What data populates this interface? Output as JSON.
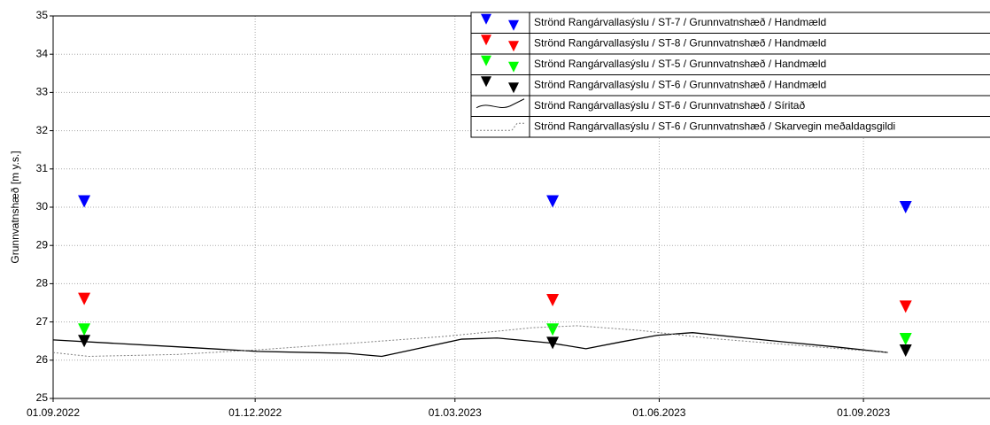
{
  "chart_data": {
    "type": "line",
    "y_label": "Grunnvatnshæð [m y.s.]",
    "ylim": [
      25,
      35
    ],
    "yticks": [
      25,
      26,
      27,
      28,
      29,
      30,
      31,
      32,
      33,
      34,
      35
    ],
    "xlim": [
      "2022-09-01",
      "2023-10-28"
    ],
    "xticks": [
      {
        "value": "2022-09-01",
        "label": "01.09.2022"
      },
      {
        "value": "2022-12-01",
        "label": "01.12.2022"
      },
      {
        "value": "2023-03-01",
        "label": "01.03.2023"
      },
      {
        "value": "2023-06-01",
        "label": "01.06.2023"
      },
      {
        "value": "2023-09-01",
        "label": "01.09.2023"
      }
    ],
    "grid": true,
    "legend": "upper right",
    "series": [
      {
        "name": "Strönd Rangárvallasýslu / ST-7 / Grunnvatnshæð / Handmæld",
        "color": "#0000ff",
        "style": "triangle",
        "x": [
          "2022-09-15",
          "2023-04-14",
          "2023-09-20"
        ],
        "values": [
          30.15,
          30.15,
          30.0
        ]
      },
      {
        "name": "Strönd Rangárvallasýslu / ST-8 / Grunnvatnshæð / Handmæld",
        "color": "#ff0000",
        "style": "triangle",
        "x": [
          "2022-09-15",
          "2023-04-14",
          "2023-09-20"
        ],
        "values": [
          27.6,
          27.57,
          27.4
        ]
      },
      {
        "name": "Strönd Rangárvallasýslu / ST-5 / Grunnvatnshæð / Handmæld",
        "color": "#00ff00",
        "style": "triangle",
        "x": [
          "2022-09-15",
          "2023-04-14",
          "2023-09-20"
        ],
        "values": [
          26.8,
          26.8,
          26.55
        ]
      },
      {
        "name": "Strönd Rangárvallasýslu / ST-6 / Grunnvatnshæð / Handmæld",
        "color": "#000000",
        "style": "triangle",
        "x": [
          "2022-09-15",
          "2023-04-14",
          "2023-09-20"
        ],
        "values": [
          26.5,
          26.45,
          26.25
        ]
      },
      {
        "name": "Strönd Rangárvallasýslu / ST-6 / Grunnvatnshæð / Síritað",
        "color": "#000000",
        "style": "solid",
        "x": [
          "2022-09-01",
          "2022-10-27",
          "2022-12-02",
          "2023-01-11",
          "2023-01-27",
          "2023-02-12",
          "2023-03-04",
          "2023-03-20",
          "2023-04-13",
          "2023-04-29",
          "2023-05-15",
          "2023-05-31",
          "2023-06-16",
          "2023-07-18",
          "2023-08-19",
          "2023-09-12"
        ],
        "values": [
          26.53,
          26.35,
          26.23,
          26.18,
          26.1,
          26.3,
          26.55,
          26.58,
          26.45,
          26.3,
          26.48,
          26.65,
          26.72,
          26.53,
          26.35,
          26.2
        ]
      },
      {
        "name": "Strönd Rangárvallasýslu / ST-6 / Grunnvatnshæð / Skarvegin meðaldagsgildi",
        "color": "#808080",
        "style": "dotted",
        "x": [
          "2022-09-01",
          "2022-09-17",
          "2022-10-27",
          "2022-12-02",
          "2023-01-15",
          "2023-02-24",
          "2023-04-05",
          "2023-04-25",
          "2023-05-23",
          "2023-06-24",
          "2023-08-04",
          "2023-09-12"
        ],
        "values": [
          26.2,
          26.1,
          26.15,
          26.27,
          26.45,
          26.62,
          26.85,
          26.9,
          26.78,
          26.57,
          26.38,
          26.2
        ]
      }
    ]
  }
}
